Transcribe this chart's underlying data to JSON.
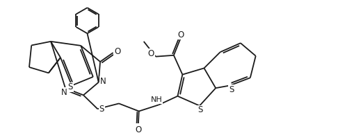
{
  "bg_color": "#ffffff",
  "line_color": "#1a1a1a",
  "lw": 1.3,
  "figsize": [
    5.22,
    1.92
  ],
  "dpi": 100,
  "xlim": [
    0,
    10.44
  ],
  "ylim": [
    0,
    3.84
  ]
}
